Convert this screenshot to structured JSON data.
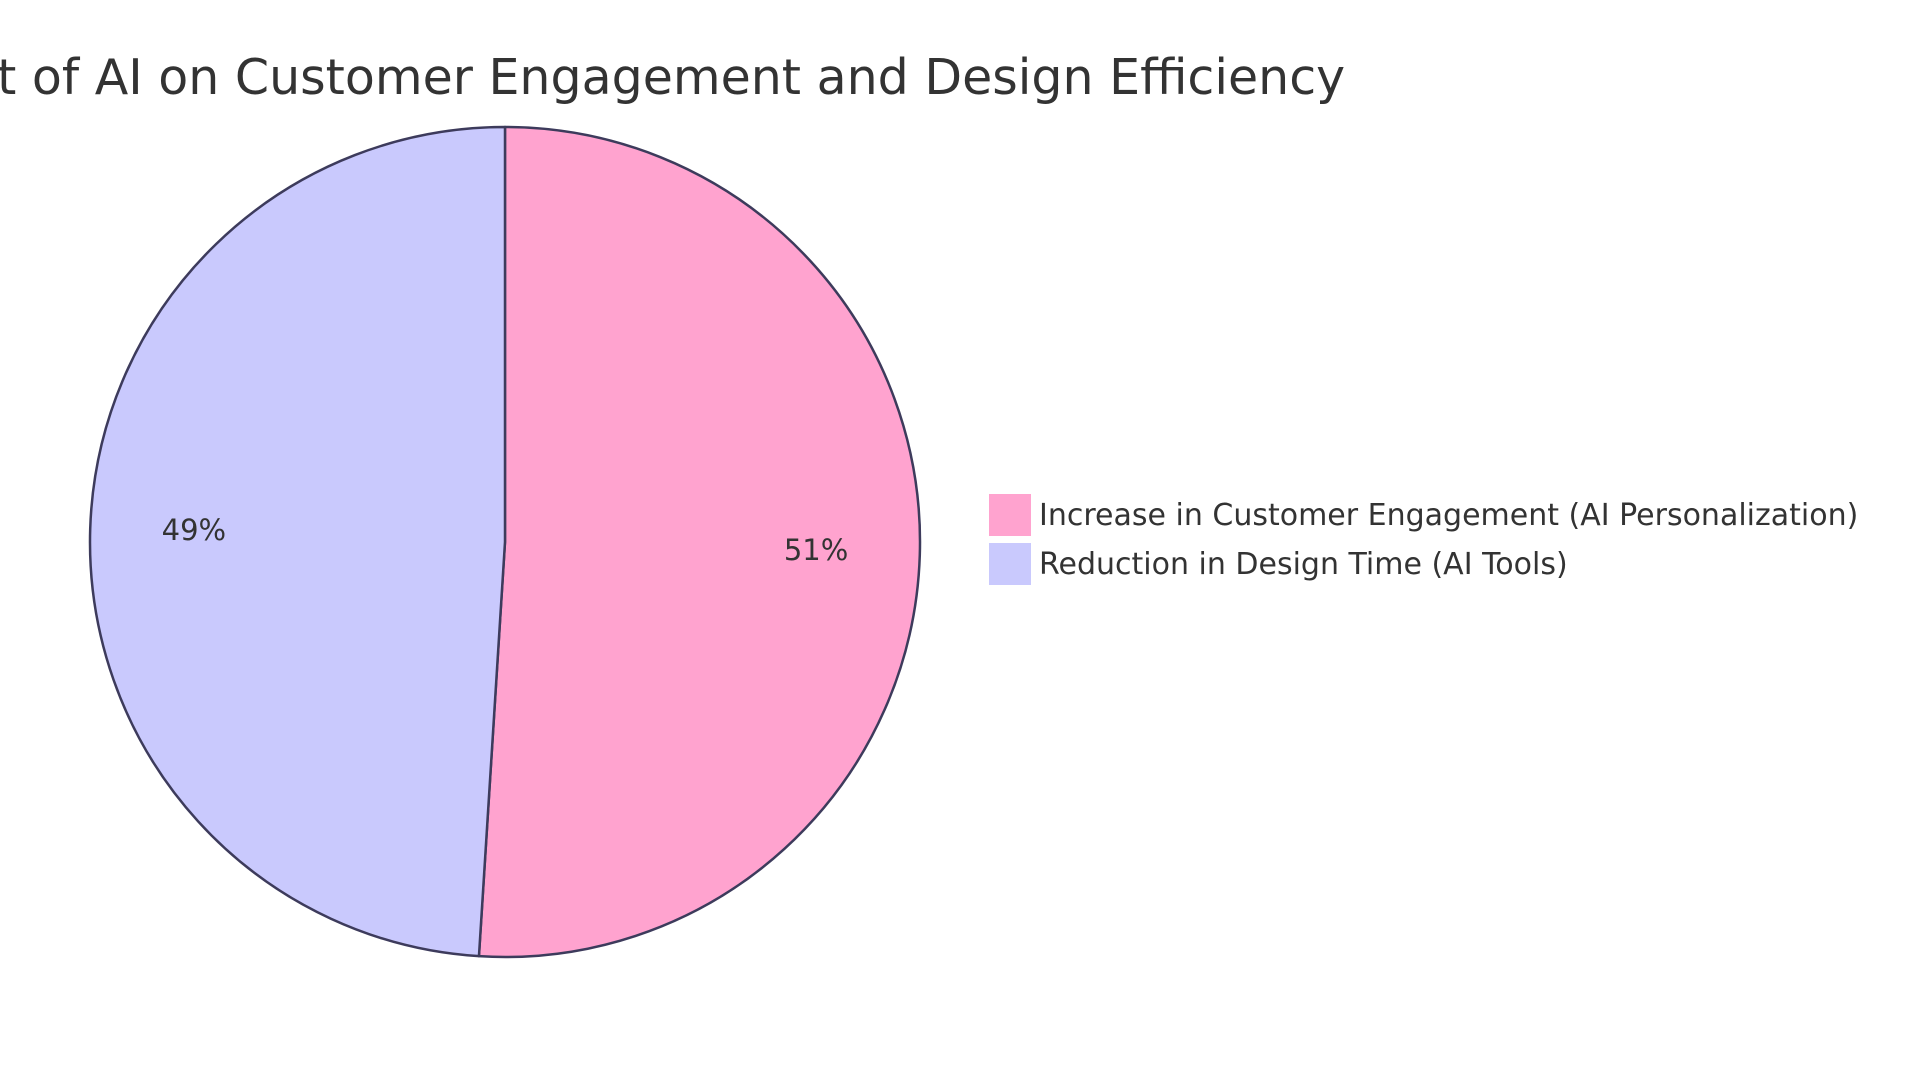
{
  "chart_data": {
    "type": "pie",
    "title": "Impact of AI on Customer Engagement and Design Efficiency",
    "categories": [
      "Increase in Customer Engagement (AI Personalization)",
      "Reduction in Design Time (AI Tools)"
    ],
    "values": [
      51,
      49
    ],
    "value_labels": [
      "51%",
      "49%"
    ],
    "colors": [
      "#FFA3CF",
      "#C9C9FD"
    ],
    "stroke_color": "#3D3B5C",
    "legend_position": "right"
  }
}
